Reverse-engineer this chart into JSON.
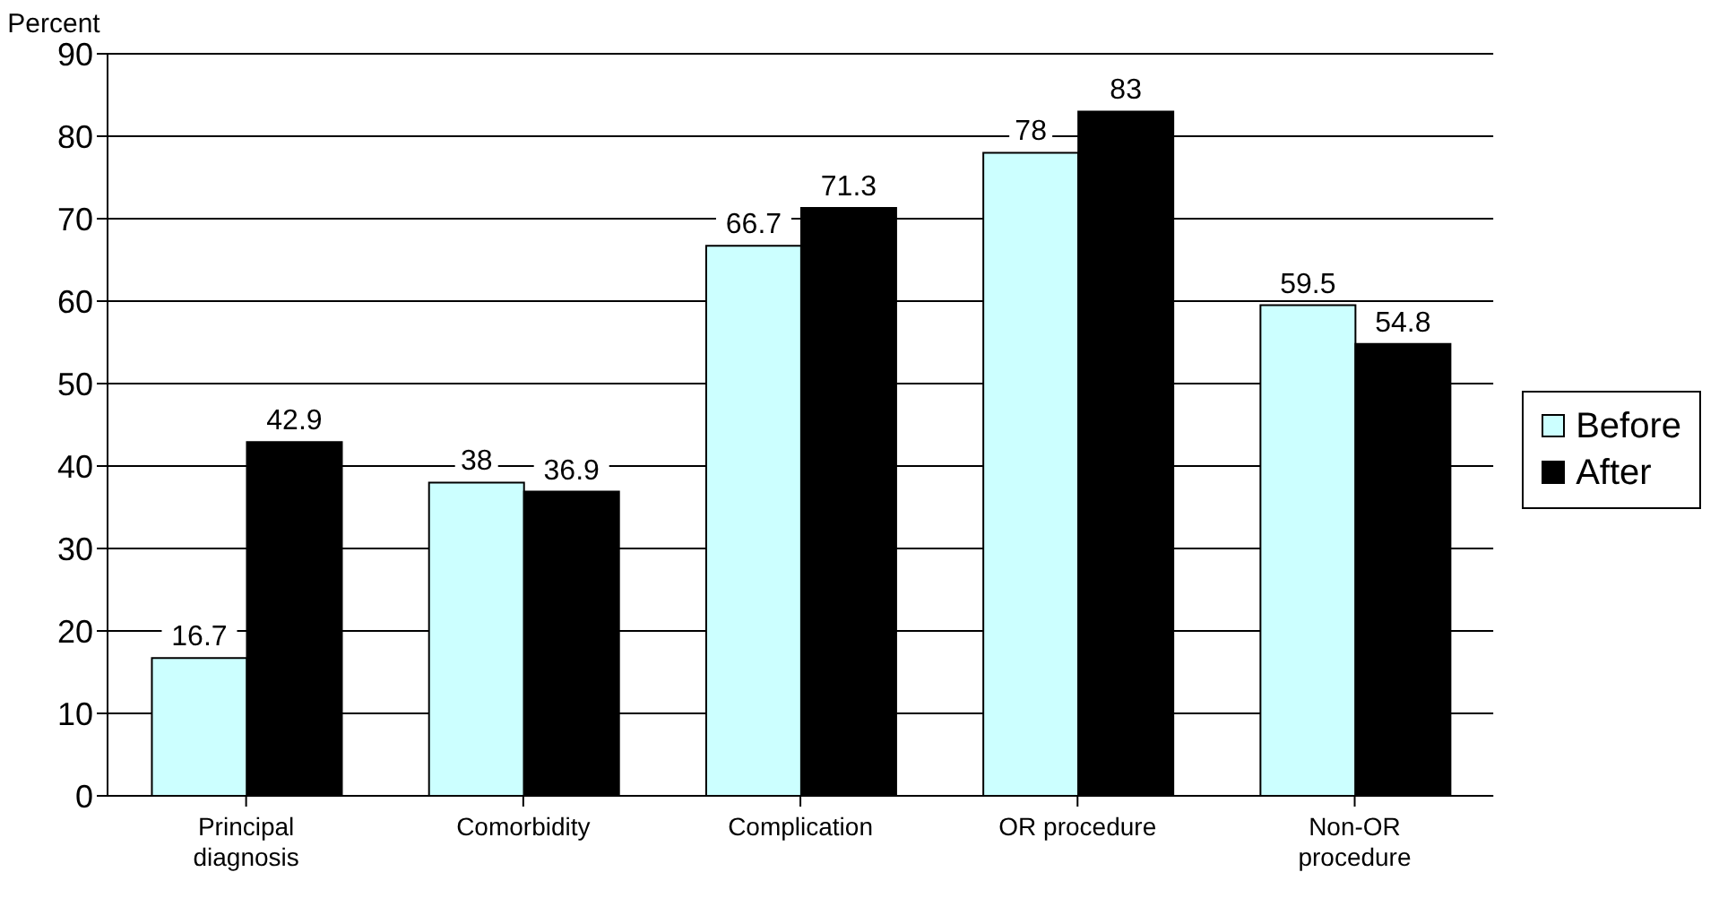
{
  "chart_data": {
    "type": "bar",
    "ylabel": "Percent",
    "categories": [
      "Principal diagnosis",
      "Comorbidity",
      "Complication",
      "OR procedure",
      "Non-OR procedure"
    ],
    "series": [
      {
        "name": "Before",
        "color": "#ccffff",
        "values": [
          16.7,
          38,
          66.7,
          78,
          59.5
        ]
      },
      {
        "name": "After",
        "color": "#000000",
        "values": [
          42.9,
          36.9,
          71.3,
          83,
          54.8
        ]
      }
    ],
    "ylim": [
      0,
      90
    ],
    "yticks": [
      0,
      10,
      20,
      30,
      40,
      50,
      60,
      70,
      80,
      90
    ],
    "grid": "y",
    "legend": "right",
    "data_labels": true
  }
}
